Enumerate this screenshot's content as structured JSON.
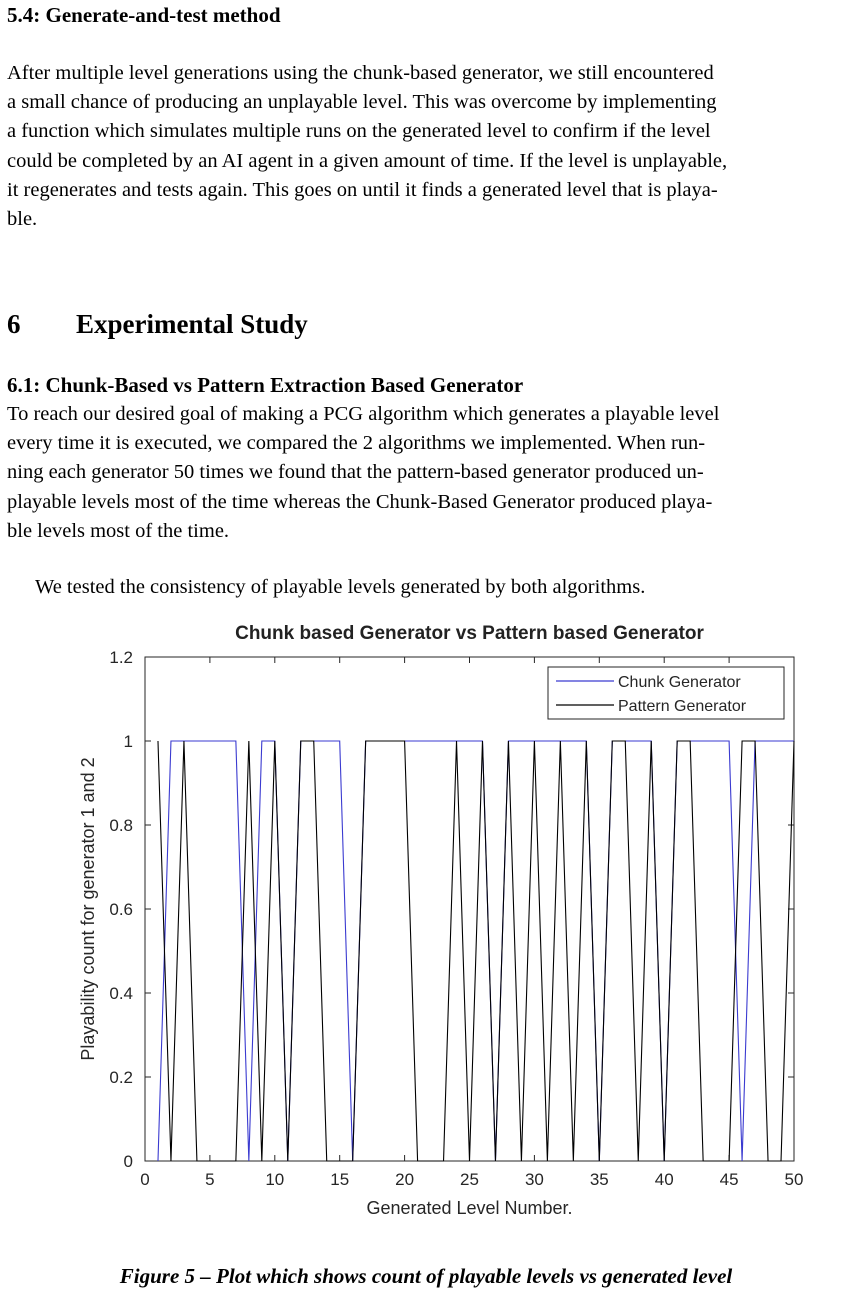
{
  "sections": {
    "s54": {
      "heading": "5.4: Generate-and-test method",
      "lines": [
        "After multiple level generations using the chunk-based generator, we still encountered",
        "a small chance of producing an unplayable level. This was overcome by implementing",
        "a function which simulates multiple runs on the generated level to confirm if the level",
        "could be completed by an AI agent in a given amount of time. If the level is unplayable,",
        "it regenerates and tests again. This goes on until it finds a generated level that is playa-",
        "ble."
      ]
    },
    "s6": {
      "number": "6",
      "title": "Experimental Study"
    },
    "s61": {
      "heading": "6.1: Chunk-Based vs Pattern Extraction Based Generator",
      "lines": [
        "To reach our desired goal of making a PCG algorithm which generates a playable level",
        "every time it is executed, we compared the 2 algorithms we implemented. When run-",
        "ning each generator 50 times we found that the pattern-based generator produced un-",
        "playable levels most of the time whereas the Chunk-Based Generator produced playa-",
        "ble levels most of the time."
      ]
    },
    "intro": "We tested the consistency of playable levels generated by both algorithms."
  },
  "chart_data": {
    "type": "line",
    "title": "Chunk based Generator vs Pattern based Generator",
    "xlabel": "Generated Level Number.",
    "ylabel": "Playability count for generator 1 and 2",
    "xlim": [
      0,
      50
    ],
    "ylim": [
      0,
      1.2
    ],
    "xticks": [
      0,
      5,
      10,
      15,
      20,
      25,
      30,
      35,
      40,
      45,
      50
    ],
    "yticks": [
      0,
      0.2,
      0.4,
      0.6,
      0.8,
      1,
      1.2
    ],
    "grid": false,
    "legend_position": "top-right",
    "x": [
      1,
      2,
      3,
      4,
      5,
      6,
      7,
      8,
      9,
      10,
      11,
      12,
      13,
      14,
      15,
      16,
      17,
      18,
      19,
      20,
      21,
      22,
      23,
      24,
      25,
      26,
      27,
      28,
      29,
      30,
      31,
      32,
      33,
      34,
      35,
      36,
      37,
      38,
      39,
      40,
      41,
      42,
      43,
      44,
      45,
      46,
      47,
      48,
      49,
      50
    ],
    "series": [
      {
        "name": "Chunk Generator",
        "color": "#3a3ad0",
        "values": [
          0,
          1,
          1,
          1,
          1,
          1,
          1,
          0,
          1,
          1,
          0,
          1,
          1,
          1,
          1,
          0,
          1,
          1,
          1,
          1,
          1,
          1,
          1,
          1,
          1,
          1,
          0,
          1,
          1,
          1,
          1,
          1,
          1,
          1,
          0,
          1,
          1,
          1,
          1,
          0,
          1,
          1,
          1,
          1,
          1,
          0,
          1,
          1,
          1,
          1
        ]
      },
      {
        "name": "Pattern Generator",
        "color": "#000000",
        "values": [
          1,
          0,
          1,
          0,
          0,
          0,
          0,
          1,
          0,
          1,
          0,
          1,
          1,
          0,
          0,
          0,
          1,
          1,
          1,
          1,
          0,
          0,
          0,
          1,
          0,
          1,
          0,
          1,
          0,
          1,
          0,
          1,
          0,
          1,
          0,
          1,
          1,
          0,
          1,
          0,
          1,
          1,
          0,
          0,
          0,
          1,
          1,
          0,
          0,
          1
        ]
      }
    ]
  },
  "caption": "Figure 5 – Plot which shows count of playable levels vs generated level"
}
